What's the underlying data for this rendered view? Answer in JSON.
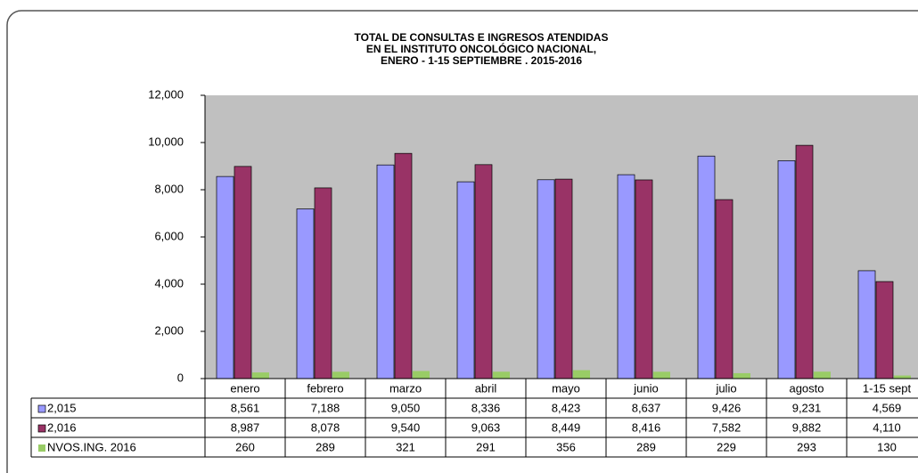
{
  "chart_data": {
    "type": "bar",
    "title": [
      "TOTAL DE CONSULTAS  E INGRESOS ATENDIDAS",
      "EN EL INSTITUTO  ONCOLÓGICO  NACIONAL,",
      "ENERO -   1-15  SEPTIEMBRE . 2015-2016"
    ],
    "categories": [
      "enero",
      "febrero",
      "marzo",
      "abril",
      "mayo",
      "junio",
      "julio",
      "agosto",
      "1-15 sept"
    ],
    "series": [
      {
        "name": "2,015",
        "color": "#9999ff",
        "values": [
          8561,
          7188,
          9050,
          8336,
          8423,
          8637,
          9426,
          9231,
          4569
        ],
        "value_labels": [
          "8,561",
          "7,188",
          "9,050",
          "8,336",
          "8,423",
          "8,637",
          "9,426",
          "9,231",
          "4,569"
        ]
      },
      {
        "name": "2,016",
        "color": "#993366",
        "values": [
          8987,
          8078,
          9540,
          9063,
          8449,
          8416,
          7582,
          9882,
          4110
        ],
        "value_labels": [
          "8,987",
          "8,078",
          "9,540",
          "9,063",
          "8,449",
          "8,416",
          "7,582",
          "9,882",
          "4,110"
        ]
      },
      {
        "name": "NVOS.ING. 2016",
        "color": "#99cc66",
        "values": [
          260,
          289,
          321,
          291,
          356,
          289,
          229,
          293,
          130
        ]
      }
    ],
    "ylim": [
      0,
      12000
    ],
    "yticks": [
      0,
      {
        "value": 2000,
        "label": "2,000"
      },
      {
        "value": 4000,
        "label": "4,000"
      },
      {
        "value": 6000,
        "label": "6,000"
      },
      {
        "value": 8000,
        "label": "8,000"
      },
      {
        "value": 10000,
        "label": "10,000"
      },
      {
        "value": 12000,
        "label": "12,000"
      }
    ],
    "plot_background": "#c0c0c0"
  }
}
